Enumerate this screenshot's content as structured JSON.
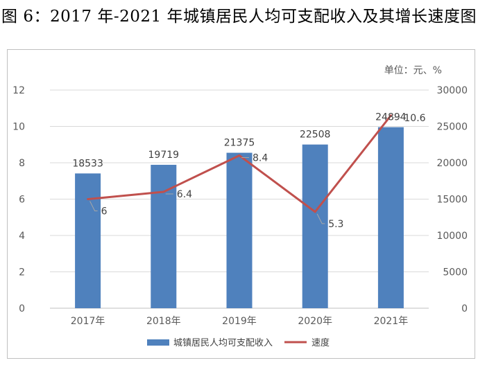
{
  "title": "图 6：2017 年-2021 年城镇居民人均可支配收入及其增长速度图",
  "unit_label": "单位：元、%",
  "colors": {
    "bar": "#4f81bd",
    "line": "#c0504d",
    "grid": "#d9d9d9"
  },
  "chart_data": {
    "type": "bar",
    "categories": [
      "2017年",
      "2018年",
      "2019年",
      "2020年",
      "2021年"
    ],
    "series": [
      {
        "name": "城镇居民人均可支配收入",
        "type": "bar",
        "axis": "right",
        "values": [
          18533,
          19719,
          21375,
          22508,
          24894
        ]
      },
      {
        "name": "速度",
        "type": "line",
        "axis": "left",
        "values": [
          6,
          6.4,
          8.4,
          5.3,
          10.6
        ]
      }
    ],
    "y_left": {
      "ticks": [
        "0",
        "2",
        "4",
        "6",
        "8",
        "10",
        "12"
      ],
      "lim": [
        0,
        12
      ]
    },
    "y_right": {
      "ticks": [
        "0",
        "5000",
        "10000",
        "15000",
        "20000",
        "25000",
        "30000"
      ],
      "lim": [
        0,
        30000
      ]
    },
    "grid": true,
    "legend": "bottom"
  }
}
